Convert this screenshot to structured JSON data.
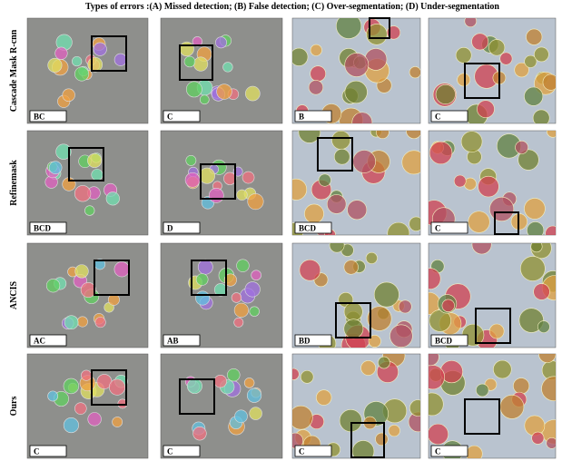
{
  "title": "Types of errors :(A) Missed detection; (B) False detection; (C) Over-segmentation;  (D) Under-segmentation",
  "rows": [
    {
      "label": "Cascade Mask R-cnn",
      "tags": [
        "BC",
        "C",
        "B",
        "C"
      ]
    },
    {
      "label": "Refinemask",
      "tags": [
        "BCD",
        "D",
        "BCD",
        "C"
      ]
    },
    {
      "label": "ANCIS",
      "tags": [
        "AC",
        "AB",
        "BD",
        "BCD"
      ]
    },
    {
      "label": "Ours",
      "tags": [
        "C",
        "C",
        "C",
        "C"
      ]
    }
  ]
}
